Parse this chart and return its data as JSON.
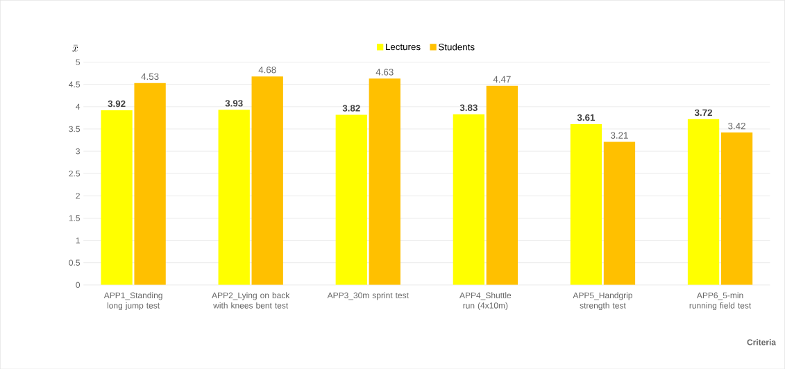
{
  "chart_data": {
    "type": "bar",
    "ylabel": "\\bar{x}",
    "xlabel": "Criteria",
    "categories": [
      "APP1_Standing long jump test",
      "APP2_Lying on back with knees bent test",
      "APP3_30m sprint test",
      "APP4_Shuttle run (4x10m)",
      "APP5_Handgrip strength test",
      "APP6_5-min running field test"
    ],
    "series": [
      {
        "name": "Lectures",
        "color": "#ffff00",
        "values": [
          3.92,
          3.93,
          3.82,
          3.83,
          3.61,
          3.72
        ]
      },
      {
        "name": "Students",
        "color": "#ffc000",
        "values": [
          4.53,
          4.68,
          4.63,
          4.47,
          3.21,
          3.42
        ]
      }
    ],
    "ylim": [
      0,
      5
    ],
    "yticks": [
      0,
      0.5,
      1,
      1.5,
      2,
      2.5,
      3,
      3.5,
      4,
      4.5,
      5
    ],
    "grid": "y",
    "legend": "top",
    "data_labels": true
  }
}
